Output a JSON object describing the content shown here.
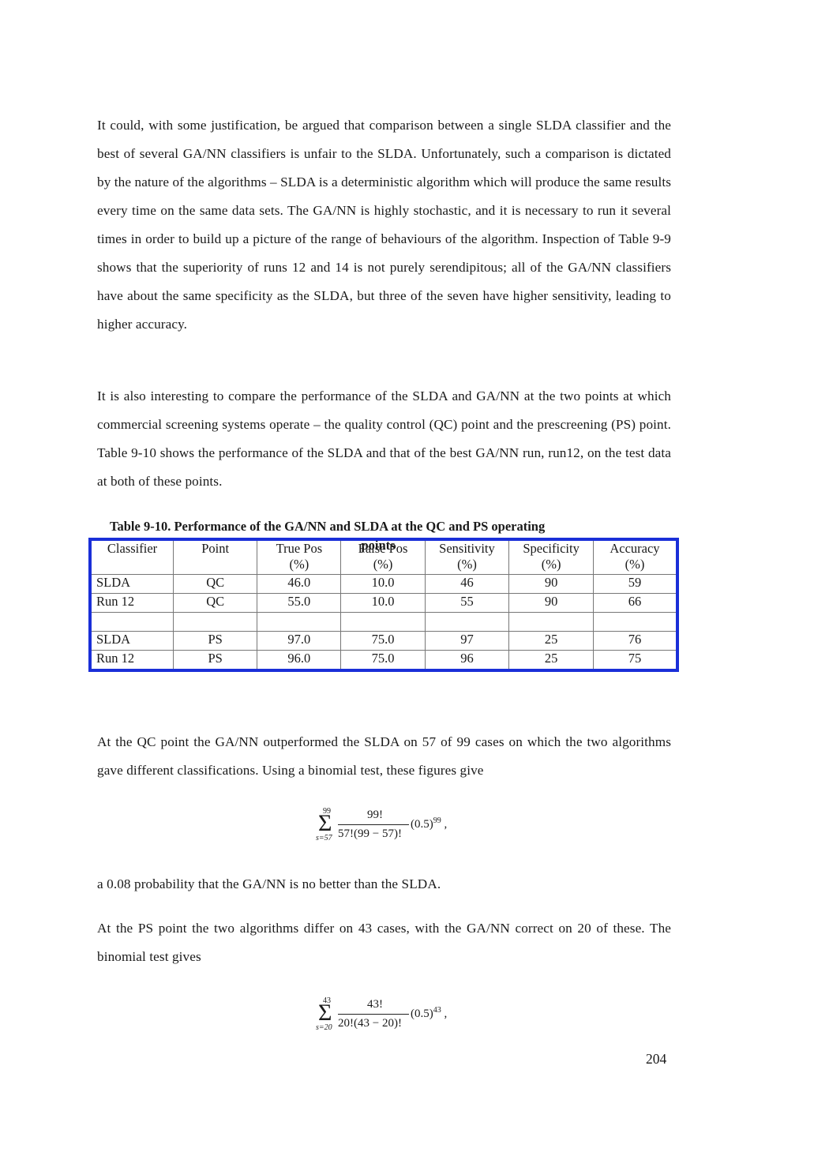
{
  "paragraphs": {
    "p1": "It could, with some justification, be argued that comparison between a single SLDA classifier and the best of several GA/NN classifiers is unfair to the SLDA. Unfortunately, such a comparison is dictated by the nature of the algorithms – SLDA is a deterministic algorithm which will produce the same results every time on the same data sets. The GA/NN is highly stochastic, and it is necessary to run it several times in order to build up a picture of the range of behaviours of the algorithm. Inspection of Table 9-9 shows that the superiority of runs 12 and 14 is not purely serendipitous; all of the GA/NN classifiers have about the same specificity as the SLDA, but three of the seven have higher sensitivity, leading to higher accuracy.",
    "p2": "It is also interesting to compare the performance of the SLDA and GA/NN at the two points at which commercial screening systems operate – the quality control (QC) point and the prescreening (PS) point. Table 9-10 shows the performance of the SLDA and that of the best GA/NN run, run12, on the test data at both of these points.",
    "p3": "At the QC point the GA/NN outperformed the SLDA on 57 of 99 cases on which the two algorithms gave different classifications. Using a binomial test, these figures give",
    "p4": "a 0.08 probability that the GA/NN is no better than the SLDA.",
    "p5": "At the PS point the two algorithms differ on 43 cases, with the GA/NN correct on 20 of these. The binomial test gives"
  },
  "table": {
    "caption_line1": "Table 9-10. Performance of the GA/NN and SLDA at the QC and PS operating",
    "caption_line2": "points",
    "headers": [
      {
        "l1": "Classifier",
        "l2": ""
      },
      {
        "l1": "Point",
        "l2": ""
      },
      {
        "l1": "True Pos",
        "l2": "(%)"
      },
      {
        "l1": "False Pos",
        "l2": "(%)"
      },
      {
        "l1": "Sensitivity",
        "l2": "(%)"
      },
      {
        "l1": "Specificity",
        "l2": "(%)"
      },
      {
        "l1": "Accuracy",
        "l2": "(%)"
      }
    ],
    "rows": [
      [
        "SLDA",
        "QC",
        "46.0",
        "10.0",
        "46",
        "90",
        "59"
      ],
      [
        "Run 12",
        "QC",
        "55.0",
        "10.0",
        "55",
        "90",
        "66"
      ],
      [
        "",
        "",
        "",
        "",
        "",
        "",
        ""
      ],
      [
        "SLDA",
        "PS",
        "97.0",
        "75.0",
        "97",
        "25",
        "76"
      ],
      [
        "Run 12",
        "PS",
        "96.0",
        "75.0",
        "96",
        "25",
        "75"
      ]
    ]
  },
  "formula1": {
    "upper": "99",
    "lower": "s=57",
    "sigma": "Σ",
    "numerator": "99!",
    "denominator": "57!(99 − 57)!",
    "base": "(0.5)",
    "exponent": "99",
    "trail": ","
  },
  "formula2": {
    "upper": "43",
    "lower": "s=20",
    "sigma": "Σ",
    "numerator": "43!",
    "denominator": "20!(43 − 20)!",
    "base": "(0.5)",
    "exponent": "43",
    "trail": ","
  },
  "page_number": "204"
}
